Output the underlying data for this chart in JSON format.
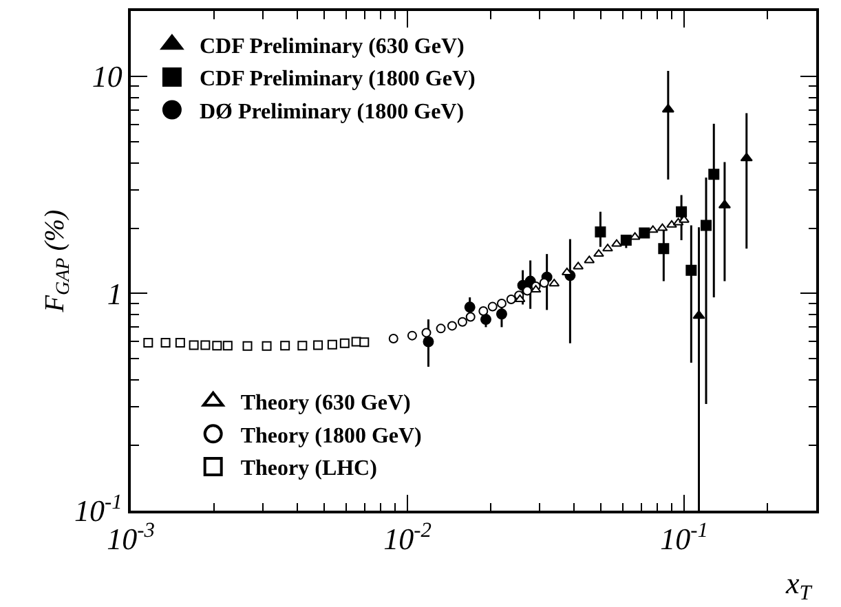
{
  "chart_data": {
    "type": "scatter",
    "xlabel": "x$_{T}$",
    "ylabel": "F$_{GAP}$ (%)",
    "log": "xy",
    "xlim": [
      0.001,
      0.3
    ],
    "ylim": [
      0.1,
      20
    ],
    "xticks": [
      {
        "value": 0.001,
        "label": "10$^{-3}$"
      },
      {
        "value": 0.002,
        "label": null
      },
      {
        "value": 0.003,
        "label": null
      },
      {
        "value": 0.004,
        "label": null
      },
      {
        "value": 0.005,
        "label": null
      },
      {
        "value": 0.006,
        "label": null
      },
      {
        "value": 0.007,
        "label": null
      },
      {
        "value": 0.008,
        "label": null
      },
      {
        "value": 0.009,
        "label": null
      },
      {
        "value": 0.01,
        "label": "10$^{-2}$"
      },
      {
        "value": 0.02,
        "label": null
      },
      {
        "value": 0.03,
        "label": null
      },
      {
        "value": 0.04,
        "label": null
      },
      {
        "value": 0.05,
        "label": null
      },
      {
        "value": 0.06,
        "label": null
      },
      {
        "value": 0.07,
        "label": null
      },
      {
        "value": 0.08,
        "label": null
      },
      {
        "value": 0.09,
        "label": null
      },
      {
        "value": 0.1,
        "label": "10$^{-1}$"
      },
      {
        "value": 0.2,
        "label": null
      },
      {
        "value": 0.3,
        "label": null
      }
    ],
    "yticks": [
      {
        "value": 0.1,
        "label": "10$^{-1}$"
      },
      {
        "value": 0.2,
        "label": null
      },
      {
        "value": 0.3,
        "label": null
      },
      {
        "value": 0.4,
        "label": null
      },
      {
        "value": 0.5,
        "label": null
      },
      {
        "value": 0.6,
        "label": null
      },
      {
        "value": 0.7,
        "label": null
      },
      {
        "value": 0.8,
        "label": null
      },
      {
        "value": 0.9,
        "label": null
      },
      1,
      {
        "value": 2,
        "label": null
      },
      {
        "value": 3,
        "label": null
      },
      {
        "value": 4,
        "label": null
      },
      {
        "value": 5,
        "label": null
      },
      {
        "value": 6,
        "label": null
      },
      {
        "value": 7,
        "label": null
      },
      {
        "value": 8,
        "label": null
      },
      {
        "value": 9,
        "label": null
      },
      10,
      {
        "value": 20,
        "label": null
      }
    ],
    "legend": "top left",
    "series": [
      {
        "name": "CDF Preliminary (630 GeV)",
        "color": "#000000",
        "marker": "triangle",
        "x": [
          0.0875,
          0.113,
          0.14,
          0.168
        ],
        "values": [
          7.05,
          0.79,
          2.55,
          4.2
        ],
        "errors": [
          [
            3.35,
            10.6
          ],
          [
            0.1,
            2.02
          ],
          [
            1.14,
            4.03
          ],
          [
            1.61,
            6.77
          ]
        ]
      },
      {
        "name": "CDF Preliminary (1800 GeV)",
        "color": "#000000",
        "marker": "square",
        "x": [
          0.0498,
          0.0617,
          0.0718,
          0.0843,
          0.0977,
          0.106,
          0.12,
          0.128
        ],
        "values": [
          1.92,
          1.76,
          1.9,
          1.61,
          2.38,
          1.28,
          2.06,
          3.54
        ],
        "errors": [
          [
            1.64,
            2.38
          ],
          [
            1.62,
            1.84
          ],
          null,
          [
            1.14,
            1.97
          ],
          [
            1.76,
            2.84
          ],
          [
            0.48,
            2.06
          ],
          [
            0.31,
            3.42
          ],
          [
            0.96,
            6.05
          ]
        ]
      },
      {
        "name": "DØ Preliminary (1800 GeV)",
        "color": "#000000",
        "marker": "circle",
        "x": [
          0.0119,
          0.0168,
          0.0192,
          0.0219,
          0.0261,
          0.0278,
          0.0319,
          0.0387
        ],
        "values": [
          0.6,
          0.865,
          0.76,
          0.805,
          1.09,
          1.14,
          1.19,
          1.21
        ],
        "errors": [
          [
            0.46,
            0.76
          ],
          [
            0.78,
            0.96
          ],
          [
            0.7,
            0.83
          ],
          [
            0.7,
            0.89
          ],
          [
            0.89,
            1.28
          ],
          [
            0.85,
            1.42
          ],
          [
            0.84,
            1.52
          ],
          [
            0.59,
            1.78
          ]
        ]
      },
      {
        "name": "Theory (630 GeV)",
        "color": "#ffffff",
        "marker": "triangle",
        "x": [
          0.0255,
          0.0291,
          0.0339,
          0.0377,
          0.0414,
          0.0454,
          0.0491,
          0.0529,
          0.057,
          0.0616,
          0.0664,
          0.0715,
          0.0771,
          0.0834,
          0.0901,
          0.0952,
          0.0999
        ],
        "values": [
          0.94,
          1.04,
          1.11,
          1.25,
          1.33,
          1.42,
          1.52,
          1.61,
          1.69,
          null,
          1.82,
          null,
          1.96,
          2.0,
          2.07,
          2.12,
          2.18
        ]
      },
      {
        "name": "Theory (1800 GeV)",
        "color": "#ffffff",
        "marker": "circle",
        "x": [
          0.0089,
          0.0104,
          0.0117,
          0.0132,
          0.0145,
          0.0158,
          0.0169,
          0.0188,
          0.0203,
          0.0219,
          0.0237,
          0.0253,
          0.0271,
          0.0291,
          0.0312
        ],
        "values": [
          0.62,
          0.64,
          0.66,
          0.69,
          0.71,
          0.74,
          0.78,
          0.83,
          0.87,
          0.9,
          0.94,
          0.98,
          1.03,
          1.08,
          1.12
        ]
      },
      {
        "name": "Theory (LHC)",
        "color": "#ffffff",
        "marker": "square",
        "x": [
          0.001156,
          0.001336,
          0.001509,
          0.00169,
          0.00186,
          0.00205,
          0.00224,
          0.00264,
          0.0031,
          0.00361,
          0.00417,
          0.00475,
          0.00535,
          0.00593,
          0.00653,
          0.00698
        ],
        "values": [
          0.593,
          0.593,
          0.593,
          0.578,
          0.578,
          0.575,
          0.575,
          0.573,
          0.573,
          0.575,
          0.575,
          0.578,
          0.582,
          0.59,
          0.6,
          0.597
        ]
      }
    ]
  }
}
